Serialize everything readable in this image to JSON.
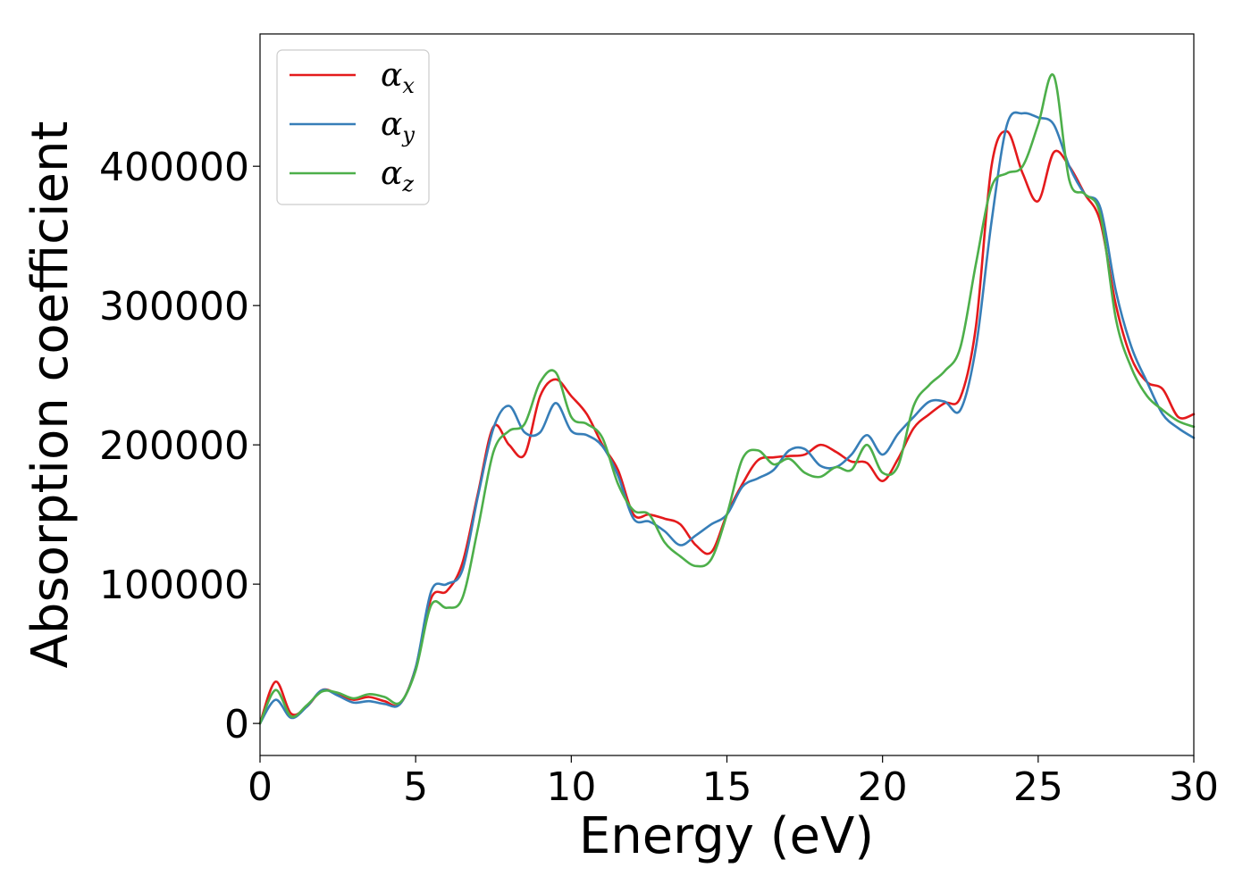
{
  "chart_data": {
    "type": "line",
    "xlabel": "Energy (eV)",
    "ylabel": "Absorption coefficient",
    "xlim": [
      0,
      30
    ],
    "ylim": [
      -23000,
      495000
    ],
    "xticks": [
      0,
      5,
      10,
      15,
      20,
      25,
      30
    ],
    "yticks": [
      0,
      100000,
      200000,
      300000,
      400000
    ],
    "grid": false,
    "legend_position": "top-left",
    "x": [
      0,
      0.5,
      1,
      1.5,
      2,
      2.5,
      3,
      3.5,
      4,
      4.5,
      5,
      5.5,
      6,
      6.5,
      7,
      7.5,
      8,
      8.5,
      9,
      9.5,
      10,
      10.5,
      11,
      11.5,
      12,
      12.5,
      13,
      13.5,
      14,
      14.5,
      15,
      15.5,
      16,
      16.5,
      17,
      17.5,
      18,
      18.5,
      19,
      19.5,
      20,
      20.5,
      21,
      21.5,
      22,
      22.5,
      23,
      23.5,
      24,
      24.5,
      25,
      25.5,
      26,
      26.5,
      27,
      27.5,
      28,
      28.5,
      29,
      29.5,
      30
    ],
    "series": [
      {
        "name": "αx",
        "legend_symbol": "α",
        "legend_subscript": "x",
        "color": "#e41a1c",
        "values": [
          0,
          30000,
          7000,
          12000,
          24000,
          21000,
          17000,
          19000,
          16000,
          14000,
          40000,
          90000,
          95000,
          115000,
          165000,
          213000,
          200000,
          193000,
          235000,
          247000,
          235000,
          222000,
          200000,
          182000,
          150000,
          150000,
          147000,
          143000,
          128000,
          123000,
          150000,
          172000,
          189000,
          191000,
          192000,
          193000,
          200000,
          195000,
          188000,
          187000,
          174000,
          190000,
          212000,
          222000,
          230000,
          234000,
          285000,
          400000,
          425000,
          395000,
          375000,
          410000,
          400000,
          380000,
          360000,
          300000,
          262000,
          245000,
          240000,
          220000,
          222000
        ]
      },
      {
        "name": "αy",
        "legend_symbol": "α",
        "legend_subscript": "y",
        "color": "#377eb8",
        "values": [
          0,
          17000,
          4000,
          12000,
          24000,
          20000,
          15000,
          16000,
          14000,
          14000,
          40000,
          95000,
          100000,
          110000,
          163000,
          212000,
          228000,
          209000,
          209000,
          230000,
          210000,
          207000,
          199000,
          178000,
          147000,
          145000,
          138000,
          128000,
          135000,
          143000,
          150000,
          170000,
          176000,
          182000,
          196000,
          197000,
          185000,
          184000,
          193000,
          207000,
          193000,
          208000,
          220000,
          231000,
          231000,
          225000,
          270000,
          360000,
          430000,
          438000,
          435000,
          430000,
          400000,
          380000,
          370000,
          310000,
          270000,
          245000,
          222000,
          212000,
          205000
        ]
      },
      {
        "name": "αz",
        "legend_symbol": "α",
        "legend_subscript": "z",
        "color": "#4daf4a",
        "values": [
          0,
          24000,
          5000,
          13000,
          23000,
          22000,
          18000,
          21000,
          19000,
          15000,
          38000,
          85000,
          83000,
          90000,
          140000,
          195000,
          210000,
          215000,
          245000,
          252000,
          220000,
          215000,
          205000,
          172000,
          153000,
          150000,
          130000,
          120000,
          113000,
          118000,
          150000,
          190000,
          196000,
          186000,
          190000,
          180000,
          177000,
          184000,
          182000,
          200000,
          180000,
          185000,
          228000,
          243000,
          253000,
          270000,
          330000,
          385000,
          395000,
          400000,
          430000,
          465000,
          390000,
          380000,
          365000,
          290000,
          255000,
          235000,
          225000,
          217000,
          213000
        ]
      }
    ]
  }
}
